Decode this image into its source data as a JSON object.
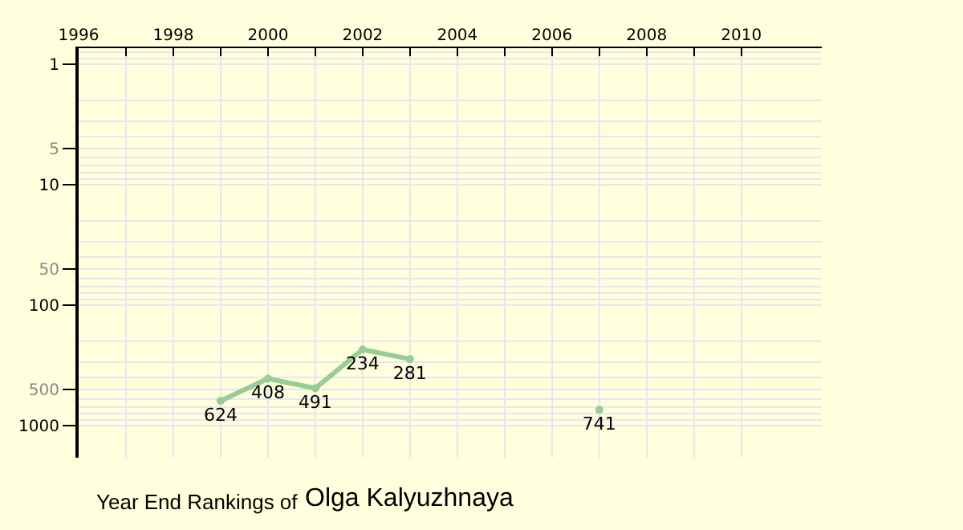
{
  "chart_data": {
    "type": "line",
    "title": "Year End Rankings of",
    "subtitle": "Olga Kalyuzhnaya",
    "x": [
      1999,
      2000,
      2001,
      2002,
      2003,
      2004,
      2005,
      2006,
      2007
    ],
    "series": [
      {
        "color": "#99cc99",
        "values": [
          624,
          408,
          491,
          234,
          281,
          null,
          null,
          null,
          741
        ]
      }
    ],
    "data_labels": true,
    "marker": "circle",
    "log": "y",
    "grid": true,
    "xlim": [
      1996,
      2011.7
    ],
    "xticks": [
      1996,
      {
        "value": 1997,
        "label": null
      },
      1998,
      {
        "value": 1999,
        "label": null
      },
      2000,
      {
        "value": 2001,
        "label": null
      },
      2002,
      {
        "value": 2003,
        "label": null
      },
      2004,
      {
        "value": 2005,
        "label": null
      },
      2006,
      {
        "value": 2007,
        "label": null
      },
      2008,
      {
        "value": 2009,
        "label": null
      },
      2010
    ],
    "ylim": [
      1850,
      0.74
    ],
    "yticks": [
      1,
      5,
      10,
      50,
      100,
      500,
      1000
    ]
  }
}
